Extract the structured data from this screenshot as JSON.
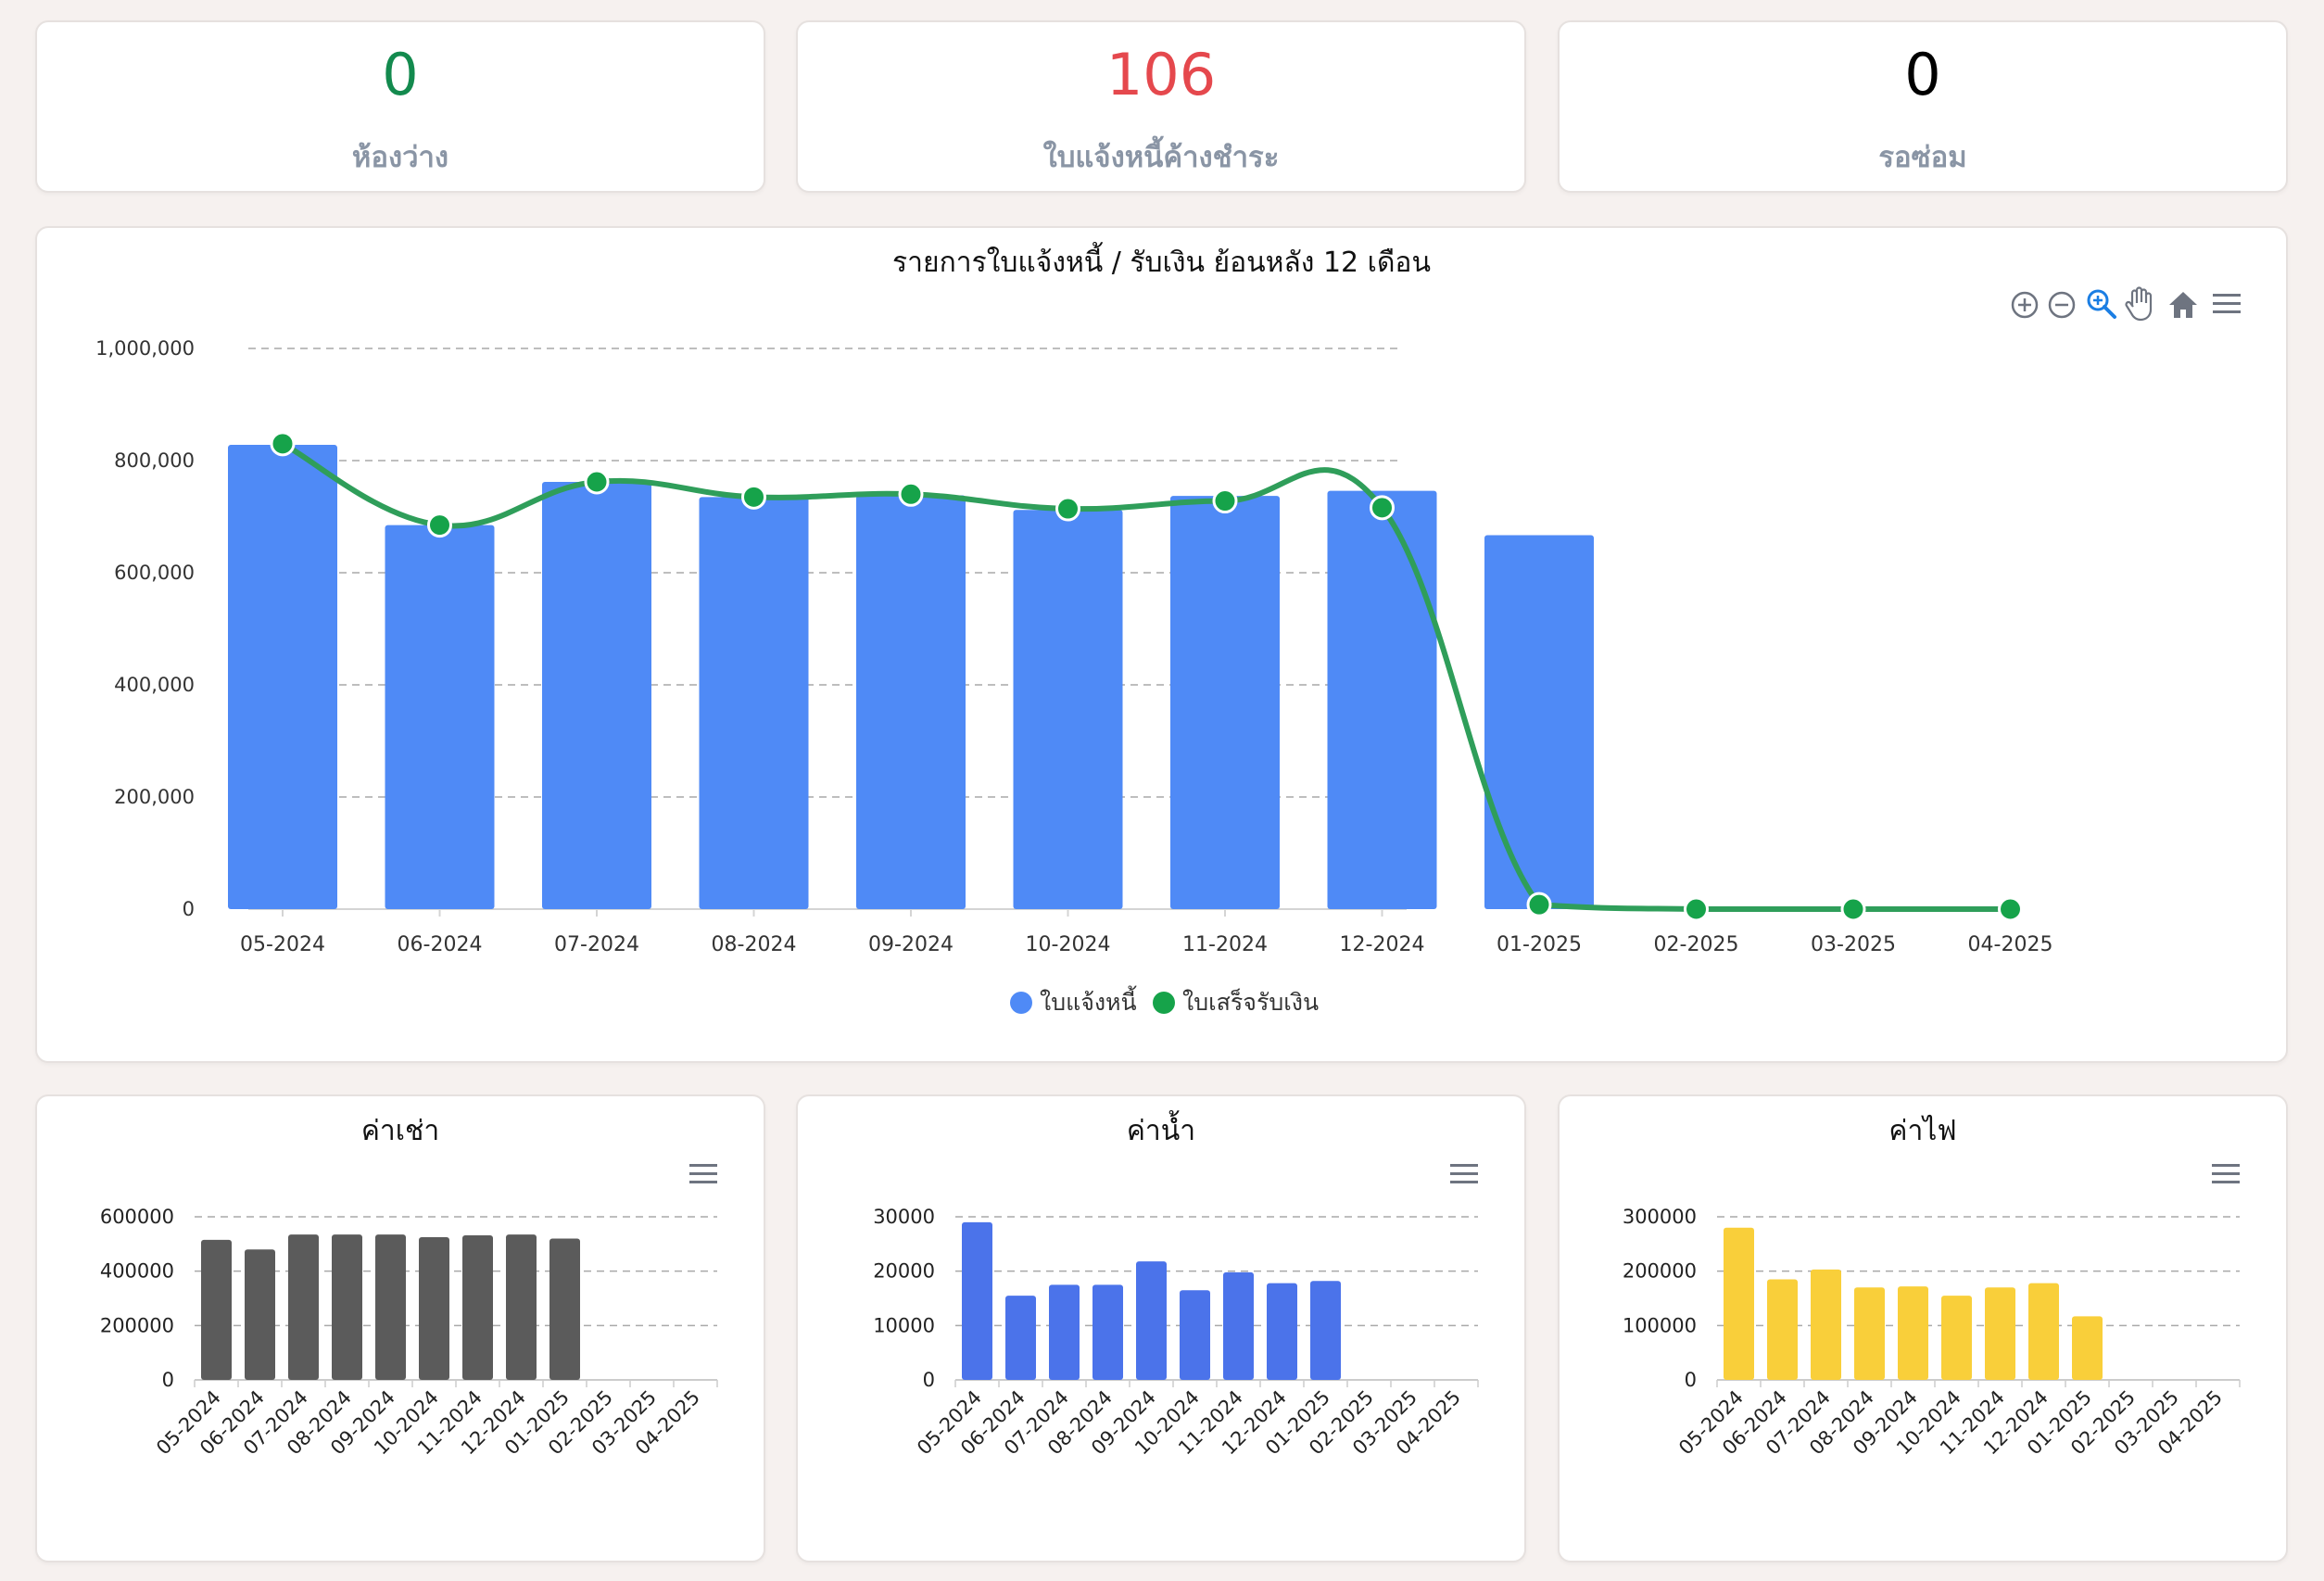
{
  "stats": [
    {
      "value": "0",
      "label": "ห้องว่าง",
      "color": "#138a4e"
    },
    {
      "value": "106",
      "label": "ใบแจ้งหนี้ค้างชำระ",
      "color": "#e5484d"
    },
    {
      "value": "0",
      "label": "รอซ่อม",
      "color": "#000000"
    }
  ],
  "main_chart": {
    "title": "รายการใบแจ้งหนี้ / รับเงิน ย้อนหลัง 12 เดือน",
    "toolbar": [
      "zoom-in-icon",
      "zoom-out-icon",
      "zoom-selection-icon",
      "pan-hand-icon",
      "home-reset-icon",
      "menu-icon"
    ],
    "legend": [
      {
        "label": "ใบแจ้งหนี้",
        "color": "#4f8af6"
      },
      {
        "label": "ใบเสร็จรับเงิน",
        "color": "#16a34a"
      }
    ]
  },
  "small_charts": [
    {
      "title": "ค่าเช่า",
      "color": "#5b5b5b"
    },
    {
      "title": "ค่าน้ำ",
      "color": "#4b73ea"
    },
    {
      "title": "ค่าไฟ",
      "color": "#f9cf3a"
    }
  ],
  "chart_data": [
    {
      "type": "bar",
      "title": "รายการใบแจ้งหนี้ / รับเงิน ย้อนหลัง 12 เดือน",
      "categories": [
        "05-2024",
        "06-2024",
        "07-2024",
        "08-2024",
        "09-2024",
        "10-2024",
        "11-2024",
        "12-2024",
        "01-2025",
        "02-2025",
        "03-2025",
        "04-2025"
      ],
      "series": [
        {
          "name": "ใบแจ้งหนี้",
          "type": "bar",
          "values": [
            828000,
            685000,
            762000,
            735000,
            738000,
            712000,
            737000,
            746000,
            667000,
            0,
            0,
            0
          ]
        },
        {
          "name": "ใบเสร็จรับเงิน",
          "type": "line",
          "values": [
            830000,
            685000,
            762000,
            735000,
            740000,
            714000,
            728000,
            716000,
            8000,
            0,
            0,
            0
          ]
        }
      ],
      "ylim": [
        0,
        1000000
      ],
      "yticks": [
        "0",
        "200,000",
        "400,000",
        "600,000",
        "800,000",
        "1,000,000"
      ],
      "grid": true,
      "legend": "bottom"
    },
    {
      "type": "bar",
      "title": "ค่าเช่า",
      "categories": [
        "05-2024",
        "06-2024",
        "07-2024",
        "08-2024",
        "09-2024",
        "10-2024",
        "11-2024",
        "12-2024",
        "01-2025",
        "02-2025",
        "03-2025",
        "04-2025"
      ],
      "values": [
        515000,
        480000,
        535000,
        535000,
        535000,
        525000,
        532000,
        535000,
        520000,
        0,
        0,
        0
      ],
      "ylim": [
        0,
        600000
      ],
      "yticks": [
        "0",
        "200000",
        "400000",
        "600000"
      ],
      "grid": true
    },
    {
      "type": "bar",
      "title": "ค่าน้ำ",
      "categories": [
        "05-2024",
        "06-2024",
        "07-2024",
        "08-2024",
        "09-2024",
        "10-2024",
        "11-2024",
        "12-2024",
        "01-2025",
        "02-2025",
        "03-2025",
        "04-2025"
      ],
      "values": [
        29000,
        15500,
        17500,
        17500,
        21800,
        16500,
        19800,
        17800,
        18200,
        0,
        0,
        0
      ],
      "ylim": [
        0,
        30000
      ],
      "yticks": [
        "0",
        "10000",
        "20000",
        "30000"
      ],
      "grid": true
    },
    {
      "type": "bar",
      "title": "ค่าไฟ",
      "categories": [
        "05-2024",
        "06-2024",
        "07-2024",
        "08-2024",
        "09-2024",
        "10-2024",
        "11-2024",
        "12-2024",
        "01-2025",
        "02-2025",
        "03-2025",
        "04-2025"
      ],
      "values": [
        280000,
        185000,
        203000,
        170000,
        172000,
        155000,
        170000,
        178000,
        117000,
        0,
        0,
        0
      ],
      "ylim": [
        0,
        300000
      ],
      "yticks": [
        "0",
        "100000",
        "200000",
        "300000"
      ],
      "grid": true
    }
  ]
}
